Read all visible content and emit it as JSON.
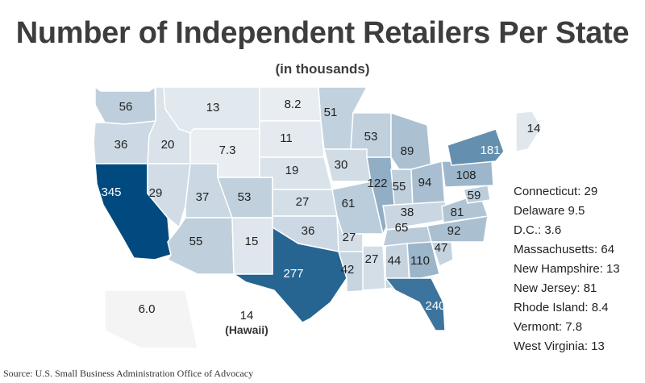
{
  "title": "Number of Independent Retailers Per State",
  "subtitle": "(in thousands)",
  "source": "Source: U.S. Small Business Administration Office of Advocacy",
  "hawaii_caption": "(Hawaii)",
  "colors": {
    "scale_min": "#f5f6f8",
    "scale_mid": "#a9bfd1",
    "scale_max": "#004a7f",
    "border": "#ffffff",
    "label_light": "#ffffff",
    "label_dark": "#222222"
  },
  "chart_data": {
    "type": "choropleth",
    "units": "thousands",
    "scale": {
      "min": 3.6,
      "max": 345
    },
    "states": [
      {
        "name": "WA",
        "value": 56
      },
      {
        "name": "OR",
        "value": 36
      },
      {
        "name": "CA",
        "value": 345
      },
      {
        "name": "ID",
        "value": 20
      },
      {
        "name": "NV",
        "value": 29
      },
      {
        "name": "MT",
        "value": 13
      },
      {
        "name": "WY",
        "value": 7.3
      },
      {
        "name": "UT",
        "value": 37
      },
      {
        "name": "AZ",
        "value": 55
      },
      {
        "name": "CO",
        "value": 53
      },
      {
        "name": "NM",
        "value": 15
      },
      {
        "name": "ND",
        "value": 8.2
      },
      {
        "name": "SD",
        "value": 11
      },
      {
        "name": "NE",
        "value": 19
      },
      {
        "name": "KS",
        "value": 27
      },
      {
        "name": "OK",
        "value": 36
      },
      {
        "name": "TX",
        "value": 277
      },
      {
        "name": "MN",
        "value": 51
      },
      {
        "name": "IA",
        "value": 30
      },
      {
        "name": "MO",
        "value": 61
      },
      {
        "name": "AR",
        "value": 27
      },
      {
        "name": "LA",
        "value": 42
      },
      {
        "name": "WI",
        "value": 53
      },
      {
        "name": "IL",
        "value": 122
      },
      {
        "name": "MI",
        "value": 89
      },
      {
        "name": "IN",
        "value": 55
      },
      {
        "name": "OH",
        "value": 94
      },
      {
        "name": "KY",
        "value": 38
      },
      {
        "name": "TN",
        "value": 65
      },
      {
        "name": "MS",
        "value": 27
      },
      {
        "name": "AL",
        "value": 44
      },
      {
        "name": "GA",
        "value": 110
      },
      {
        "name": "FL",
        "value": 240
      },
      {
        "name": "SC",
        "value": 47
      },
      {
        "name": "NC",
        "value": 92
      },
      {
        "name": "VA",
        "value": 81
      },
      {
        "name": "MD",
        "value": 59
      },
      {
        "name": "PA",
        "value": 108
      },
      {
        "name": "NY",
        "value": 181
      },
      {
        "name": "ME",
        "value": 14
      },
      {
        "name": "AK",
        "value": 6.0
      },
      {
        "name": "HI",
        "value": 14
      }
    ],
    "small_states_list": [
      "Connecticut: 29",
      "Delaware 9.5",
      "D.C.: 3.6",
      "Massachusetts: 64",
      "New Hampshire: 13",
      "New Jersey: 81",
      "Rhode Island: 8.4",
      "Vermont: 7.8",
      "West Virginia: 13"
    ]
  }
}
